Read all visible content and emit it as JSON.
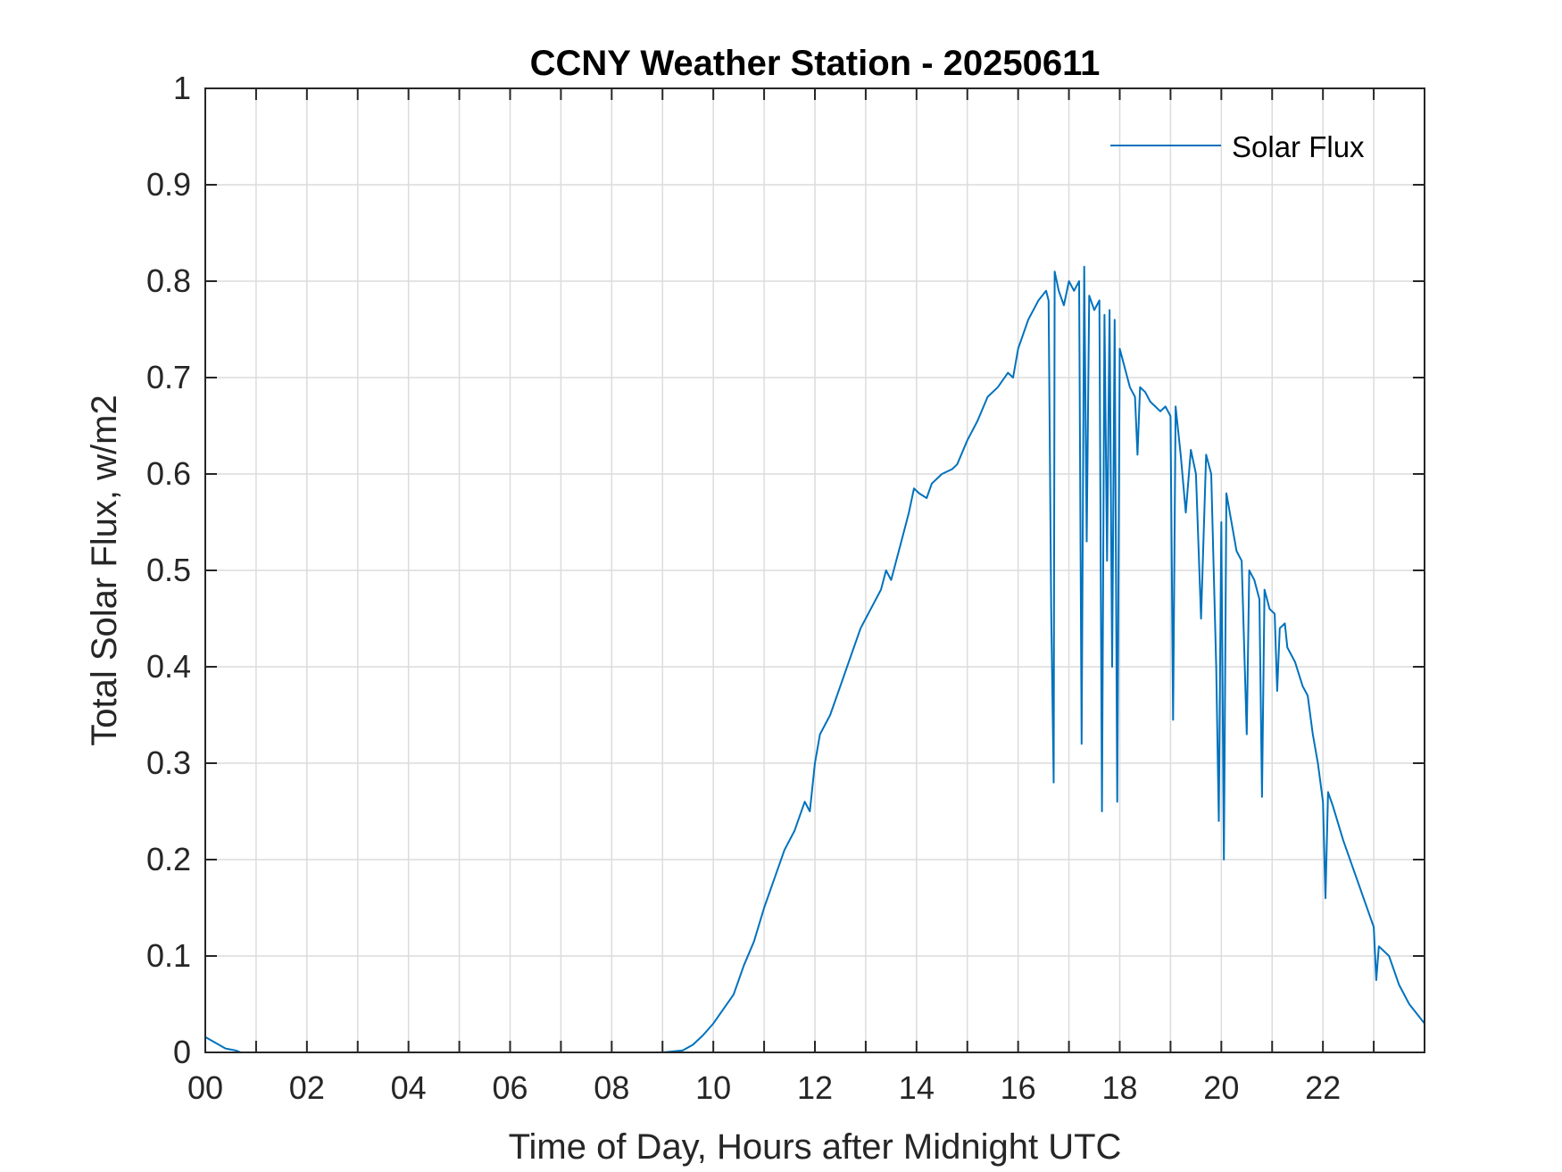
{
  "chart_data": {
    "type": "line",
    "title": "CCNY Weather Station - 20250611",
    "xlabel": "Time of Day, Hours after Midnight UTC",
    "ylabel": "Total Solar Flux, w/m2",
    "xlim": [
      0,
      24
    ],
    "ylim": [
      0,
      1
    ],
    "grid": true,
    "legend_position": "top-right",
    "x_ticks": [
      0,
      2,
      4,
      6,
      8,
      10,
      12,
      14,
      16,
      18,
      20,
      22
    ],
    "x_tick_labels": [
      "00",
      "02",
      "04",
      "06",
      "08",
      "10",
      "12",
      "14",
      "16",
      "18",
      "20",
      "22"
    ],
    "y_ticks": [
      0,
      0.1,
      0.2,
      0.3,
      0.4,
      0.5,
      0.6,
      0.7,
      0.8,
      0.9,
      1
    ],
    "y_tick_labels": [
      "0",
      "0.1",
      "0.2",
      "0.3",
      "0.4",
      "0.5",
      "0.6",
      "0.7",
      "0.8",
      "0.9",
      "1"
    ],
    "series": [
      {
        "name": "Solar Flux",
        "color": "#0072BD",
        "points": [
          [
            0.0,
            0.016
          ],
          [
            0.2,
            0.01
          ],
          [
            0.4,
            0.004
          ],
          [
            0.6,
            0.002
          ],
          [
            0.7,
            0.0
          ],
          [
            8.0,
            0.0
          ],
          [
            9.0,
            0.0
          ],
          [
            9.4,
            0.002
          ],
          [
            9.6,
            0.008
          ],
          [
            9.8,
            0.018
          ],
          [
            10.0,
            0.03
          ],
          [
            10.2,
            0.045
          ],
          [
            10.4,
            0.06
          ],
          [
            10.6,
            0.09
          ],
          [
            10.8,
            0.115
          ],
          [
            11.0,
            0.15
          ],
          [
            11.2,
            0.18
          ],
          [
            11.4,
            0.21
          ],
          [
            11.6,
            0.23
          ],
          [
            11.8,
            0.26
          ],
          [
            11.9,
            0.25
          ],
          [
            12.0,
            0.3
          ],
          [
            12.1,
            0.33
          ],
          [
            12.3,
            0.35
          ],
          [
            12.5,
            0.38
          ],
          [
            12.7,
            0.41
          ],
          [
            12.9,
            0.44
          ],
          [
            13.1,
            0.46
          ],
          [
            13.3,
            0.48
          ],
          [
            13.4,
            0.5
          ],
          [
            13.5,
            0.49
          ],
          [
            13.7,
            0.53
          ],
          [
            13.85,
            0.56
          ],
          [
            13.95,
            0.585
          ],
          [
            14.05,
            0.58
          ],
          [
            14.2,
            0.575
          ],
          [
            14.3,
            0.59
          ],
          [
            14.5,
            0.6
          ],
          [
            14.7,
            0.605
          ],
          [
            14.8,
            0.61
          ],
          [
            15.0,
            0.635
          ],
          [
            15.2,
            0.655
          ],
          [
            15.4,
            0.68
          ],
          [
            15.6,
            0.69
          ],
          [
            15.8,
            0.705
          ],
          [
            15.9,
            0.7
          ],
          [
            16.0,
            0.73
          ],
          [
            16.2,
            0.76
          ],
          [
            16.4,
            0.78
          ],
          [
            16.55,
            0.79
          ],
          [
            16.6,
            0.78
          ],
          [
            16.65,
            0.46
          ],
          [
            16.7,
            0.28
          ],
          [
            16.72,
            0.81
          ],
          [
            16.8,
            0.79
          ],
          [
            16.9,
            0.775
          ],
          [
            17.0,
            0.8
          ],
          [
            17.1,
            0.79
          ],
          [
            17.2,
            0.8
          ],
          [
            17.25,
            0.32
          ],
          [
            17.3,
            0.815
          ],
          [
            17.35,
            0.53
          ],
          [
            17.4,
            0.785
          ],
          [
            17.5,
            0.77
          ],
          [
            17.6,
            0.78
          ],
          [
            17.65,
            0.25
          ],
          [
            17.7,
            0.765
          ],
          [
            17.75,
            0.51
          ],
          [
            17.8,
            0.77
          ],
          [
            17.85,
            0.4
          ],
          [
            17.9,
            0.76
          ],
          [
            17.95,
            0.26
          ],
          [
            18.0,
            0.73
          ],
          [
            18.1,
            0.71
          ],
          [
            18.2,
            0.69
          ],
          [
            18.3,
            0.68
          ],
          [
            18.35,
            0.62
          ],
          [
            18.4,
            0.69
          ],
          [
            18.5,
            0.685
          ],
          [
            18.6,
            0.675
          ],
          [
            18.8,
            0.665
          ],
          [
            18.9,
            0.67
          ],
          [
            19.0,
            0.66
          ],
          [
            19.05,
            0.345
          ],
          [
            19.1,
            0.67
          ],
          [
            19.2,
            0.62
          ],
          [
            19.3,
            0.56
          ],
          [
            19.4,
            0.625
          ],
          [
            19.5,
            0.6
          ],
          [
            19.6,
            0.45
          ],
          [
            19.7,
            0.62
          ],
          [
            19.8,
            0.6
          ],
          [
            19.9,
            0.4
          ],
          [
            19.95,
            0.24
          ],
          [
            20.0,
            0.55
          ],
          [
            20.05,
            0.2
          ],
          [
            20.1,
            0.58
          ],
          [
            20.2,
            0.55
          ],
          [
            20.3,
            0.52
          ],
          [
            20.4,
            0.51
          ],
          [
            20.5,
            0.33
          ],
          [
            20.55,
            0.5
          ],
          [
            20.65,
            0.49
          ],
          [
            20.75,
            0.47
          ],
          [
            20.8,
            0.265
          ],
          [
            20.85,
            0.48
          ],
          [
            20.95,
            0.46
          ],
          [
            21.05,
            0.455
          ],
          [
            21.1,
            0.375
          ],
          [
            21.15,
            0.44
          ],
          [
            21.25,
            0.445
          ],
          [
            21.3,
            0.42
          ],
          [
            21.45,
            0.405
          ],
          [
            21.6,
            0.38
          ],
          [
            21.7,
            0.37
          ],
          [
            21.8,
            0.33
          ],
          [
            21.9,
            0.3
          ],
          [
            22.0,
            0.26
          ],
          [
            22.05,
            0.16
          ],
          [
            22.1,
            0.27
          ],
          [
            22.2,
            0.255
          ],
          [
            22.4,
            0.22
          ],
          [
            22.6,
            0.19
          ],
          [
            22.8,
            0.16
          ],
          [
            23.0,
            0.13
          ],
          [
            23.05,
            0.075
          ],
          [
            23.1,
            0.11
          ],
          [
            23.3,
            0.1
          ],
          [
            23.5,
            0.07
          ],
          [
            23.7,
            0.05
          ],
          [
            24.0,
            0.03
          ]
        ]
      }
    ]
  }
}
